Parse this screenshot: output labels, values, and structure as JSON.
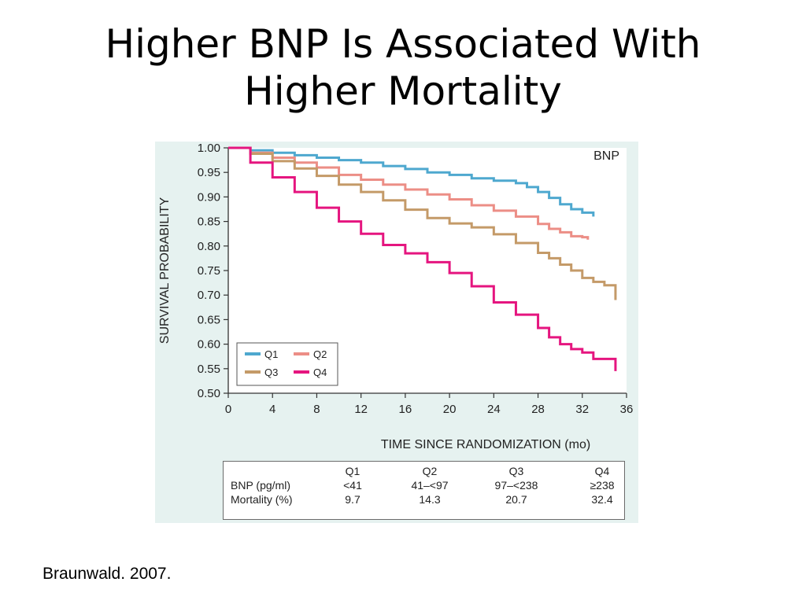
{
  "slide": {
    "title_line1": "Higher BNP Is Associated With",
    "title_line2": "Higher Mortality",
    "citation": "Braunwald. 2007."
  },
  "colors": {
    "Q1": "#4ea8cf",
    "Q2": "#ec8e86",
    "Q3": "#c49a68",
    "Q4": "#e5157f",
    "panel_bg": "#e6f2f0"
  },
  "chart_data": {
    "type": "line",
    "title": "",
    "annotation": "BNP",
    "xlabel": "TIME SINCE RANDOMIZATION (mo)",
    "ylabel": "SURVIVAL PROBABILITY",
    "xlim": [
      0,
      36
    ],
    "ylim": [
      0.5,
      1.0
    ],
    "xticks": [
      "0",
      "4",
      "8",
      "12",
      "16",
      "20",
      "24",
      "28",
      "32",
      "36"
    ],
    "yticks": [
      "1.00",
      "0.95",
      "0.90",
      "0.85",
      "0.80",
      "0.75",
      "0.70",
      "0.65",
      "0.60",
      "0.55",
      "0.50"
    ],
    "grid": false,
    "legend_position": "bottom-left",
    "series": [
      {
        "name": "Q1",
        "x": [
          0,
          2,
          4,
          6,
          8,
          10,
          12,
          14,
          16,
          18,
          20,
          22,
          24,
          26,
          27,
          28,
          29,
          30,
          31,
          32,
          33,
          33
        ],
        "y": [
          1.0,
          0.995,
          0.99,
          0.985,
          0.98,
          0.975,
          0.97,
          0.963,
          0.957,
          0.95,
          0.945,
          0.938,
          0.933,
          0.928,
          0.92,
          0.91,
          0.898,
          0.885,
          0.875,
          0.868,
          0.868,
          0.86
        ]
      },
      {
        "name": "Q2",
        "x": [
          0,
          2,
          4,
          6,
          8,
          10,
          12,
          14,
          16,
          18,
          20,
          22,
          24,
          26,
          28,
          29,
          30,
          31,
          32,
          32.5
        ],
        "y": [
          1.0,
          0.99,
          0.98,
          0.97,
          0.96,
          0.945,
          0.935,
          0.925,
          0.915,
          0.905,
          0.895,
          0.883,
          0.872,
          0.86,
          0.845,
          0.835,
          0.828,
          0.82,
          0.818,
          0.813
        ]
      },
      {
        "name": "Q3",
        "x": [
          0,
          2,
          4,
          6,
          8,
          10,
          12,
          14,
          16,
          18,
          20,
          22,
          24,
          26,
          28,
          29,
          30,
          31,
          32,
          33,
          34,
          35,
          35
        ],
        "y": [
          1.0,
          0.988,
          0.973,
          0.958,
          0.943,
          0.925,
          0.91,
          0.893,
          0.874,
          0.857,
          0.846,
          0.838,
          0.824,
          0.806,
          0.786,
          0.775,
          0.762,
          0.75,
          0.735,
          0.727,
          0.72,
          0.72,
          0.69
        ]
      },
      {
        "name": "Q4",
        "x": [
          0,
          2,
          4,
          6,
          8,
          10,
          12,
          14,
          16,
          18,
          20,
          22,
          24,
          26,
          28,
          29,
          30,
          31,
          32,
          33,
          34,
          35,
          35
        ],
        "y": [
          1.0,
          0.97,
          0.94,
          0.91,
          0.878,
          0.85,
          0.825,
          0.802,
          0.785,
          0.767,
          0.745,
          0.718,
          0.685,
          0.66,
          0.633,
          0.614,
          0.6,
          0.59,
          0.583,
          0.57,
          0.57,
          0.57,
          0.545
        ]
      }
    ]
  },
  "mortality_table": {
    "row_labels": [
      "BNP (pg/ml)",
      "Mortality (%)"
    ],
    "columns": [
      {
        "quartile": "Q1",
        "bnp": "<41",
        "mortality": "9.7"
      },
      {
        "quartile": "Q2",
        "bnp": "41–<97",
        "mortality": "14.3"
      },
      {
        "quartile": "Q3",
        "bnp": "97–<238",
        "mortality": "20.7"
      },
      {
        "quartile": "Q4",
        "bnp": "≥238",
        "mortality": "32.4"
      }
    ]
  }
}
